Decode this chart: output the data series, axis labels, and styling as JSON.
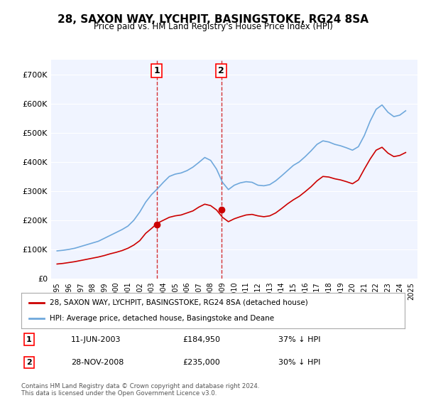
{
  "title": "28, SAXON WAY, LYCHPIT, BASINGSTOKE, RG24 8SA",
  "subtitle": "Price paid vs. HM Land Registry's House Price Index (HPI)",
  "xlabel": "",
  "ylabel": "",
  "legend_line1": "28, SAXON WAY, LYCHPIT, BASINGSTOKE, RG24 8SA (detached house)",
  "legend_line2": "HPI: Average price, detached house, Basingstoke and Deane",
  "footer1": "Contains HM Land Registry data © Crown copyright and database right 2024.",
  "footer2": "This data is licensed under the Open Government Licence v3.0.",
  "sale1_label": "1",
  "sale1_date": "11-JUN-2003",
  "sale1_price": "£184,950",
  "sale1_hpi": "37% ↓ HPI",
  "sale2_label": "2",
  "sale2_date": "28-NOV-2008",
  "sale2_price": "£235,000",
  "sale2_hpi": "30% ↓ HPI",
  "hpi_color": "#6fa8dc",
  "sale_color": "#cc0000",
  "marker_color": "#cc0000",
  "vline_color": "#cc0000",
  "background_color": "#ffffff",
  "plot_bg_color": "#f0f4ff",
  "ylim": [
    0,
    750000
  ],
  "yticks": [
    0,
    100000,
    200000,
    300000,
    400000,
    500000,
    600000,
    700000
  ],
  "ytick_labels": [
    "£0",
    "£100K",
    "£200K",
    "£300K",
    "£400K",
    "£500K",
    "£600K",
    "£700K"
  ],
  "sale1_year": 2003.44,
  "sale1_value": 184950,
  "sale2_year": 2008.91,
  "sale2_value": 235000,
  "hpi_years": [
    1995.0,
    1995.5,
    1996.0,
    1996.5,
    1997.0,
    1997.5,
    1998.0,
    1998.5,
    1999.0,
    1999.5,
    2000.0,
    2000.5,
    2001.0,
    2001.5,
    2002.0,
    2002.5,
    2003.0,
    2003.5,
    2004.0,
    2004.5,
    2005.0,
    2005.5,
    2006.0,
    2006.5,
    2007.0,
    2007.5,
    2008.0,
    2008.5,
    2009.0,
    2009.5,
    2010.0,
    2010.5,
    2011.0,
    2011.5,
    2012.0,
    2012.5,
    2013.0,
    2013.5,
    2014.0,
    2014.5,
    2015.0,
    2015.5,
    2016.0,
    2016.5,
    2017.0,
    2017.5,
    2018.0,
    2018.5,
    2019.0,
    2019.5,
    2020.0,
    2020.5,
    2021.0,
    2021.5,
    2022.0,
    2022.5,
    2023.0,
    2023.5,
    2024.0,
    2024.5
  ],
  "hpi_values": [
    95000,
    97000,
    100000,
    104000,
    110000,
    116000,
    122000,
    128000,
    138000,
    148000,
    158000,
    168000,
    180000,
    200000,
    228000,
    262000,
    288000,
    308000,
    330000,
    350000,
    358000,
    362000,
    370000,
    382000,
    398000,
    415000,
    405000,
    375000,
    330000,
    305000,
    320000,
    328000,
    332000,
    330000,
    320000,
    318000,
    322000,
    335000,
    352000,
    370000,
    388000,
    400000,
    418000,
    438000,
    460000,
    472000,
    468000,
    460000,
    455000,
    448000,
    440000,
    452000,
    490000,
    540000,
    580000,
    595000,
    570000,
    555000,
    560000,
    575000
  ],
  "sale_years": [
    1995.0,
    1995.5,
    1996.0,
    1996.5,
    1997.0,
    1997.5,
    1998.0,
    1998.5,
    1999.0,
    1999.5,
    2000.0,
    2000.5,
    2001.0,
    2001.5,
    2002.0,
    2002.5,
    2003.0,
    2003.5,
    2004.0,
    2004.5,
    2005.0,
    2005.5,
    2006.0,
    2006.5,
    2007.0,
    2007.5,
    2008.0,
    2008.5,
    2009.0,
    2009.5,
    2010.0,
    2010.5,
    2011.0,
    2011.5,
    2012.0,
    2012.5,
    2013.0,
    2013.5,
    2014.0,
    2014.5,
    2015.0,
    2015.5,
    2016.0,
    2016.5,
    2017.0,
    2017.5,
    2018.0,
    2018.5,
    2019.0,
    2019.5,
    2020.0,
    2020.5,
    2021.0,
    2021.5,
    2022.0,
    2022.5,
    2023.0,
    2023.5,
    2024.0,
    2024.5
  ],
  "sale_values": [
    50000,
    52000,
    55000,
    58000,
    62000,
    66000,
    70000,
    74000,
    79000,
    85000,
    90000,
    96000,
    104000,
    115000,
    130000,
    155000,
    172000,
    190000,
    200000,
    210000,
    215000,
    218000,
    225000,
    232000,
    245000,
    255000,
    250000,
    235000,
    210000,
    195000,
    205000,
    212000,
    218000,
    220000,
    215000,
    212000,
    215000,
    225000,
    240000,
    256000,
    270000,
    282000,
    298000,
    315000,
    335000,
    350000,
    348000,
    342000,
    338000,
    332000,
    325000,
    338000,
    375000,
    410000,
    440000,
    450000,
    430000,
    418000,
    422000,
    432000
  ]
}
